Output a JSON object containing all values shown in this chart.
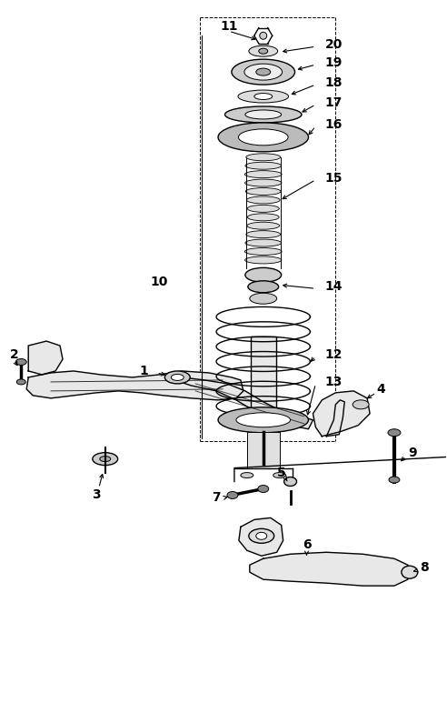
{
  "bg_color": "#ffffff",
  "line_color": "#000000",
  "label_color": "#000000",
  "fig_width": 4.92,
  "fig_height": 7.95
}
